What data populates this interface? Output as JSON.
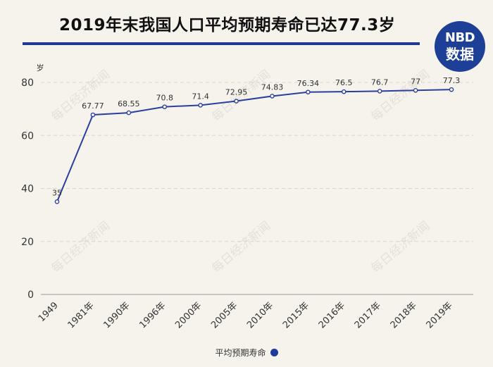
{
  "header": {
    "title": "2019年末我国人口平均预期寿命已达77.3岁",
    "logo_line1": "NBD",
    "logo_line2": "数据",
    "watermark_text": "每日经济新闻"
  },
  "colors": {
    "line": "#2b3f9e",
    "point_fill": "#ffffff",
    "grid": "#d8d4ce",
    "background": "#f6f2ec",
    "accent": "#1f3a8f"
  },
  "chart_data": {
    "type": "line",
    "title": "2019年末我国人口平均预期寿命已达77.3岁",
    "xlabel": "",
    "ylabel": "岁",
    "ylim": [
      0,
      80
    ],
    "yticks": [
      0,
      20,
      40,
      60,
      80
    ],
    "grid": true,
    "legend_position": "bottom-center",
    "categories": [
      "1949",
      "1981年",
      "1990年",
      "1996年",
      "2000年",
      "2005年",
      "2010年",
      "2015年",
      "2016年",
      "2017年",
      "2018年",
      "2019年"
    ],
    "series": [
      {
        "name": "平均预期寿命",
        "values": [
          35,
          67.77,
          68.55,
          70.8,
          71.4,
          72.95,
          74.83,
          76.34,
          76.5,
          76.7,
          77,
          77.3
        ],
        "labels": [
          "35",
          "67.77",
          "68.55",
          "70.8",
          "71.4",
          "72.95",
          "74.83",
          "76.34",
          "76.5",
          "76.7",
          "77",
          "77.3"
        ]
      }
    ]
  }
}
